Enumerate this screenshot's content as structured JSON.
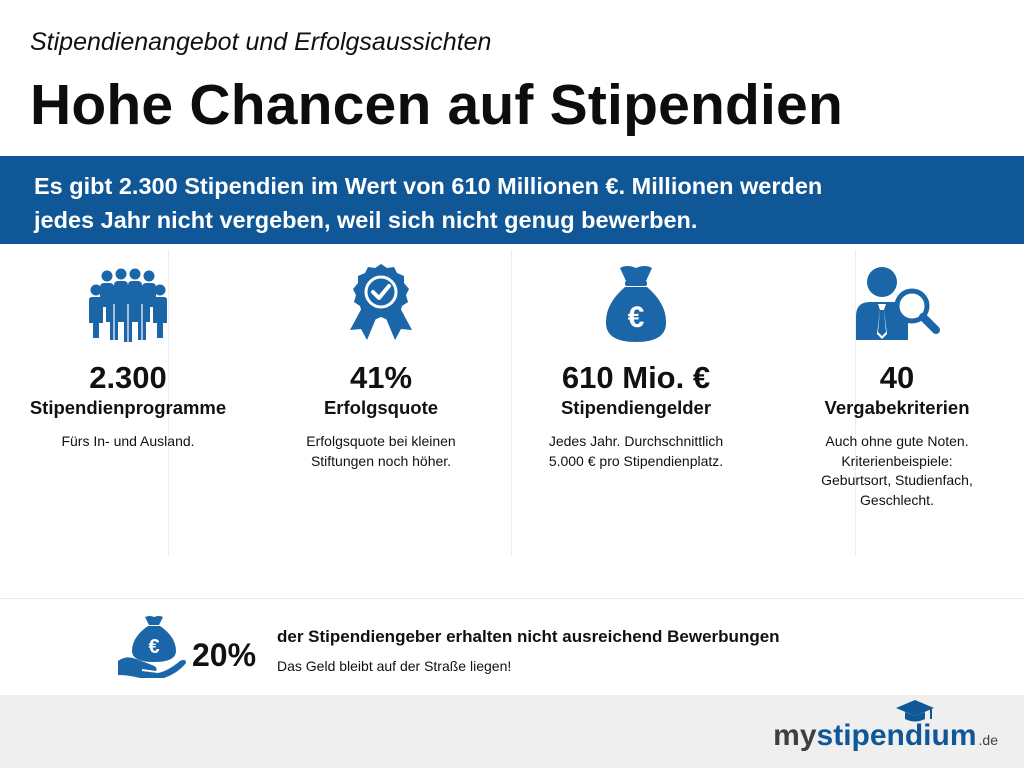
{
  "header": {
    "subtitle": "Stipendienangebot und Erfolgsaussichten",
    "title": "Hohe Chancen auf Stipendien"
  },
  "banner": {
    "line1": "Es gibt 2.300 Stipendien im Wert von 610 Millionen €. Millionen werden",
    "line2": "jedes Jahr nicht vergeben, weil sich nicht genug bewerben."
  },
  "stats": [
    {
      "icon": "people-group-icon",
      "value": "2.300",
      "label": "Stipendienprogramme",
      "desc1": "Fürs In- und Ausland.",
      "desc2": "",
      "desc3": "",
      "desc4": ""
    },
    {
      "icon": "award-badge-icon",
      "value": "41%",
      "label": "Erfolgsquote",
      "desc1": "Erfolgsquote bei kleinen",
      "desc2": "Stiftungen noch höher.",
      "desc3": "",
      "desc4": ""
    },
    {
      "icon": "euro-money-bag-icon",
      "value": "610 Mio. €",
      "label": "Stipendiengelder",
      "desc1": "Jedes Jahr. Durchschnittlich",
      "desc2": "5.000 € pro Stipendienplatz.",
      "desc3": "",
      "desc4": ""
    },
    {
      "icon": "person-magnifier-icon",
      "value": "40",
      "label": "Vergabekriterien",
      "desc1": "Auch ohne gute Noten.",
      "desc2": "Kriterienbeispiele:",
      "desc3": "Geburtsort, Studienfach,",
      "desc4": "Geschlecht."
    }
  ],
  "bottom": {
    "icon": "hand-money-bag-icon",
    "value": "20%",
    "headline": "der Stipendiengeber erhalten nicht ausreichend Bewerbungen",
    "subline": "Das Geld bleibt auf der Straße liegen!"
  },
  "footer": {
    "logo_my": "my",
    "logo_main": "stipendium",
    "logo_tld": ".de"
  },
  "colors": {
    "brand_blue": "#0f5796",
    "icon_blue": "#1a66a8"
  }
}
